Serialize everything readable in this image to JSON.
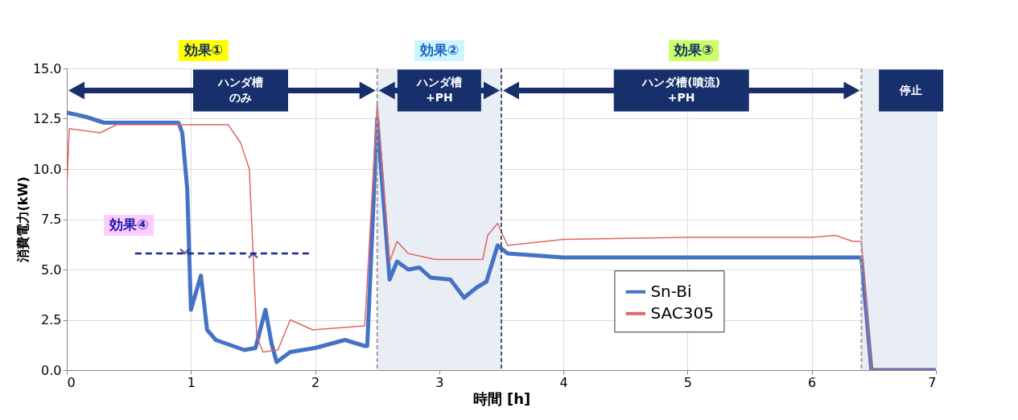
{
  "chart_data": {
    "type": "line",
    "xlabel": "時間 [h]",
    "ylabel": "消費電力(kW)",
    "xlim": [
      0,
      7
    ],
    "xticks": [
      0,
      1,
      2,
      3,
      4,
      5,
      6,
      7
    ],
    "ylim": [
      0,
      15
    ],
    "yticks": [
      {
        "value": 0,
        "label": "0.0"
      },
      2.5,
      {
        "value": 5,
        "label": "5.0"
      },
      7.5,
      {
        "value": 10,
        "label": "10.0"
      },
      12.5,
      {
        "value": 15,
        "label": "15.0"
      }
    ],
    "grid": true,
    "legend": "bottom right",
    "marker": "none",
    "line_style": "solid",
    "series": [
      {
        "name": "Sn-Bi",
        "color": "#4472c4",
        "x": [
          0,
          0.15,
          0.3,
          0.9,
          0.93,
          0.97,
          1.0,
          1.08,
          1.13,
          1.2,
          1.43,
          1.52,
          1.6,
          1.65,
          1.69,
          1.8,
          2.0,
          2.24,
          2.4,
          2.42,
          2.5,
          2.6,
          2.66,
          2.75,
          2.84,
          2.93,
          3.09,
          3.2,
          3.3,
          3.38,
          3.47,
          3.55,
          4.0,
          4.5,
          5.0,
          5.5,
          6.0,
          6.4,
          6.48,
          7.0
        ],
        "values": [
          12.8,
          12.6,
          12.3,
          12.3,
          11.8,
          9.0,
          3.0,
          4.7,
          2.0,
          1.5,
          1.0,
          1.1,
          3.0,
          1.3,
          0.4,
          0.9,
          1.1,
          1.5,
          1.2,
          1.2,
          12.5,
          4.5,
          5.4,
          5.0,
          5.1,
          4.6,
          4.5,
          3.6,
          4.1,
          4.4,
          6.2,
          5.8,
          5.6,
          5.6,
          5.6,
          5.6,
          5.6,
          5.6,
          0,
          0
        ]
      },
      {
        "name": "SAC305",
        "color": "#e06666",
        "x": [
          0,
          0.02,
          0.27,
          0.4,
          1.3,
          1.4,
          1.47,
          1.53,
          1.58,
          1.7,
          1.8,
          1.98,
          2.4,
          2.5,
          2.6,
          2.66,
          2.75,
          2.97,
          3.35,
          3.39,
          3.47,
          3.55,
          4.0,
          5.0,
          6.0,
          6.19,
          6.33,
          6.4,
          6.48,
          7.0
        ],
        "values": [
          9.0,
          12.0,
          11.8,
          12.2,
          12.2,
          11.3,
          10.0,
          1.7,
          0.9,
          1.0,
          2.5,
          2.0,
          2.2,
          13.3,
          5.4,
          6.4,
          5.8,
          5.5,
          5.5,
          6.7,
          7.3,
          6.2,
          6.5,
          6.6,
          6.6,
          6.7,
          6.4,
          6.4,
          0,
          0
        ]
      }
    ],
    "ref_lines": [
      {
        "axis": "x",
        "value": 2.5,
        "color": "#a0a0a0",
        "line_style": "dashed"
      },
      {
        "axis": "x",
        "value": 3.5,
        "color": "#4a5470",
        "line_style": "dashed"
      },
      {
        "axis": "x",
        "value": 6.4,
        "color": "#a0a0a0",
        "line_style": "dashed"
      }
    ],
    "bands": [
      {
        "axis": "x",
        "from": 2.5,
        "to": 3.5,
        "color": "#e9edf4"
      },
      {
        "axis": "x",
        "from": 6.4,
        "to": 7,
        "color": "#e9edf4"
      }
    ],
    "annotations": [
      "効果①",
      "効果②",
      "効果③",
      "効果④",
      "ハンダ槽のみ",
      "ハンダ槽+PH",
      "ハンダ槽(噴流)+PH",
      "停止"
    ]
  }
}
